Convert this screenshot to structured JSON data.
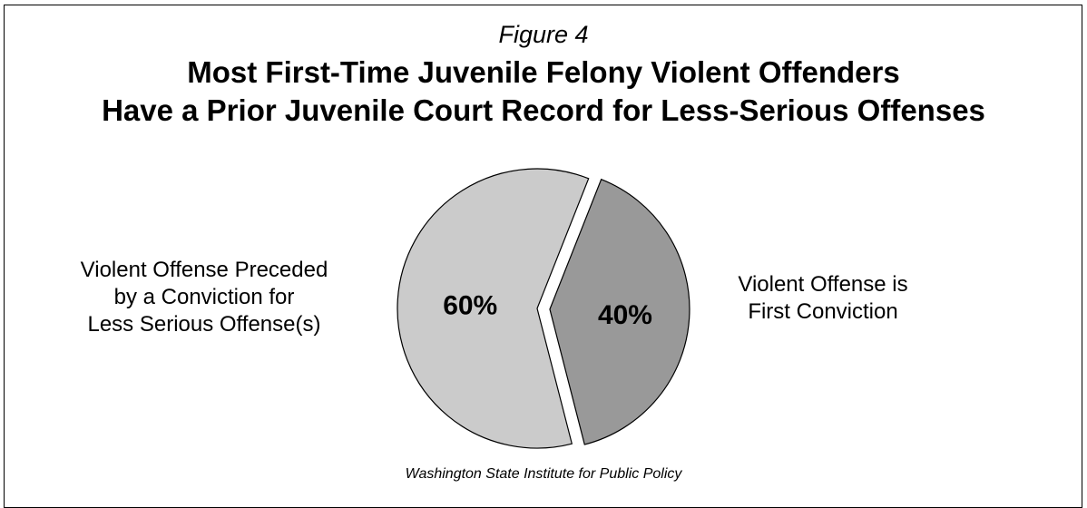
{
  "figure_label": "Figure 4",
  "title_line1": "Most First-Time Juvenile Felony Violent Offenders",
  "title_line2": "Have a Prior Juvenile Court Record for Less-Serious Offenses",
  "source": "Washington State Institute for Public Policy",
  "label_left": [
    "Violent Offense Preceded",
    "by a Conviction for",
    "Less Serious Offense(s)"
  ],
  "label_right": [
    "Violent Offense is",
    "First Conviction"
  ],
  "colors": {
    "slice_60": "#cbcbcb",
    "slice_40": "#999999",
    "outline": "#000000"
  },
  "chart_data": {
    "type": "pie",
    "title": "Most First-Time Juvenile Felony Violent Offenders Have a Prior Juvenile Court Record for Less-Serious Offenses",
    "slices": [
      {
        "label": "Violent Offense Preceded by a Conviction for Less Serious Offense(s)",
        "value": 60,
        "display": "60%"
      },
      {
        "label": "Violent Offense is First Conviction",
        "value": 40,
        "display": "40%"
      }
    ],
    "exploded": "Violent Offense is First Conviction"
  }
}
